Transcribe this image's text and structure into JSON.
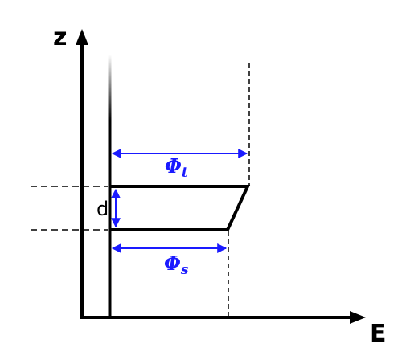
{
  "axes": {
    "vertical_label": "z",
    "horizontal_label": "E"
  },
  "labels": {
    "gap": "d",
    "phi_top": {
      "symbol": "Φ",
      "subscript": "t"
    },
    "phi_bottom": {
      "symbol": "Φ",
      "subscript": "s"
    }
  },
  "colors": {
    "lines": "#000000",
    "dimension_arrows": "#1a1aff"
  }
}
